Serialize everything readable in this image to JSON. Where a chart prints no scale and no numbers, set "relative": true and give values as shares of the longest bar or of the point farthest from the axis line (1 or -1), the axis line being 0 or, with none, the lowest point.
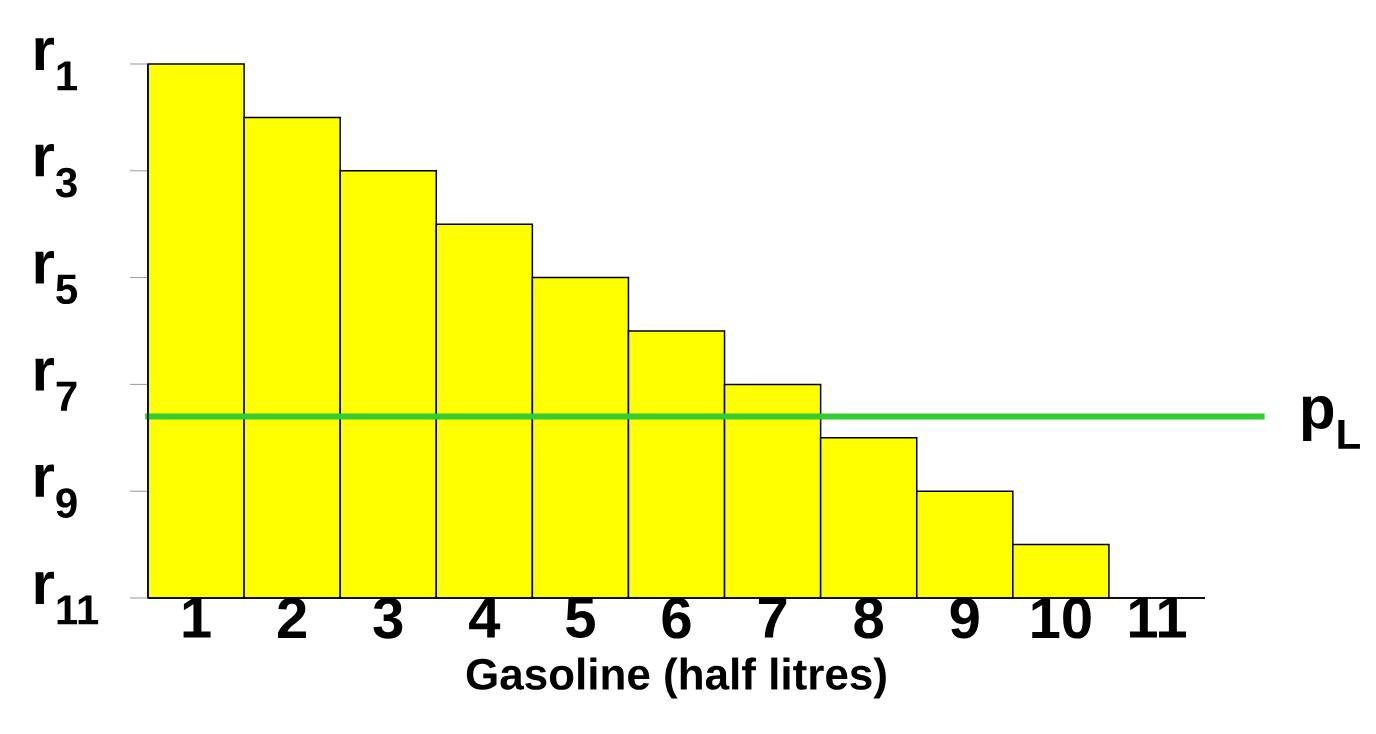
{
  "chart_data": {
    "type": "bar",
    "xlabel": "Gasoline (half litres)",
    "categories": [
      "1",
      "2",
      "3",
      "4",
      "5",
      "6",
      "7",
      "8",
      "9",
      "10",
      "11"
    ],
    "values": [
      1,
      0.9,
      0.8,
      0.7,
      0.6,
      0.5,
      0.4,
      0.3,
      0.2,
      0.1,
      0
    ],
    "color": "#ffff00",
    "relative": true,
    "annotations": [
      "r$_{1}$",
      "r$_{3}$",
      "r$_{5}$",
      "r$_{7}$",
      "r$_{9}$",
      "r$_{11}$"
    ],
    "ref_lines": [
      {
        "axis": "y",
        "value": 0.34,
        "label": "p$_{L}$",
        "color": "#33cc33"
      }
    ],
    "grid": false
  }
}
